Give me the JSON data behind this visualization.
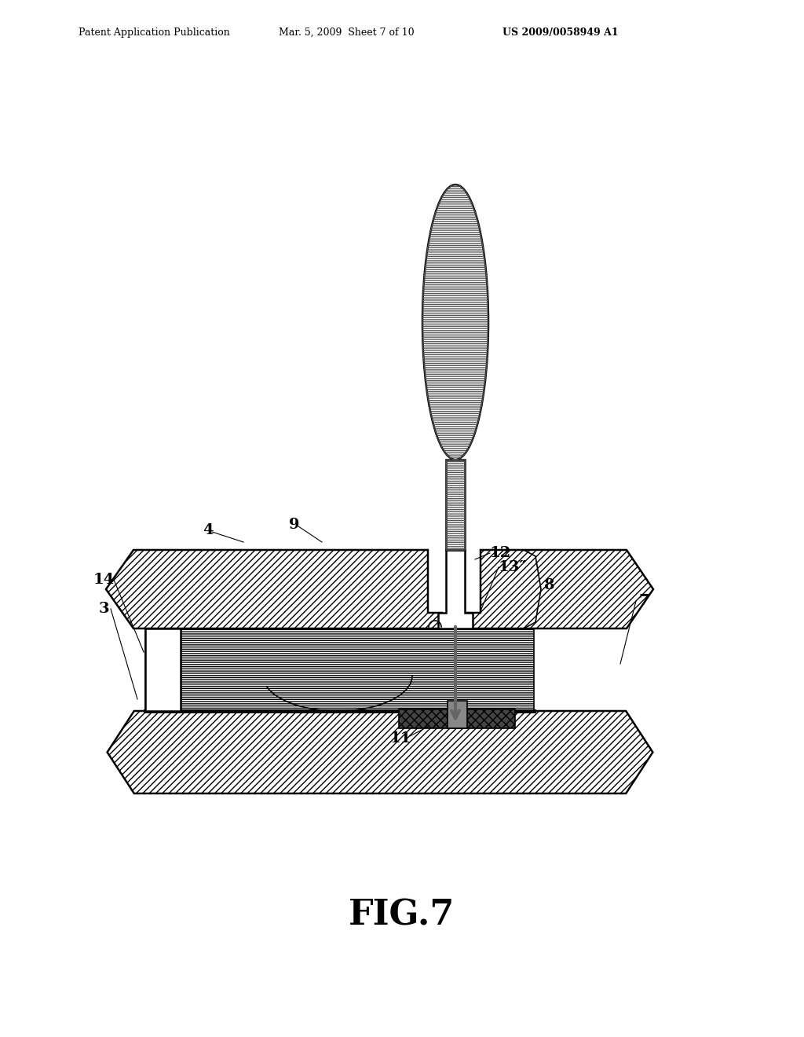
{
  "bg_color": "#ffffff",
  "line_color": "#000000",
  "fig_label": "FIG.7",
  "header_left": "Patent Application Publication",
  "header_mid": "Mar. 5, 2009  Sheet 7 of 10",
  "header_right": "US 2009/0058949 A1",
  "fig_width": 10.24,
  "fig_height": 13.2,
  "dpi": 100
}
